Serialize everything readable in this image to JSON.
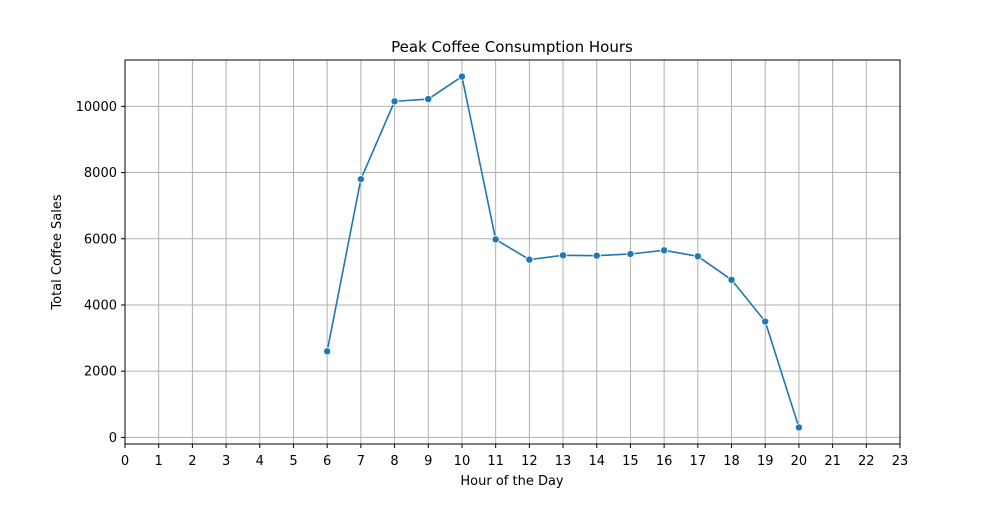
{
  "chart_data": {
    "type": "line",
    "title": "Peak Coffee Consumption Hours",
    "xlabel": "Hour of the Day",
    "ylabel": "Total Coffee Sales",
    "xlim": [
      0,
      23
    ],
    "ylim": [
      -200,
      11400
    ],
    "x_ticks": [
      0,
      1,
      2,
      3,
      4,
      5,
      6,
      7,
      8,
      9,
      10,
      11,
      12,
      13,
      14,
      15,
      16,
      17,
      18,
      19,
      20,
      21,
      22,
      23
    ],
    "y_ticks": [
      0,
      2000,
      4000,
      6000,
      8000,
      10000
    ],
    "grid": true,
    "marker": "circle",
    "series": [
      {
        "x": [
          6,
          7,
          8,
          9,
          10,
          11,
          12,
          13,
          14,
          15,
          16,
          17,
          18,
          19,
          20
        ],
        "values": [
          2600,
          7800,
          10150,
          10220,
          10900,
          5980,
          5370,
          5500,
          5490,
          5540,
          5650,
          5470,
          4760,
          3500,
          300
        ],
        "color": "#1f77b4"
      }
    ]
  }
}
